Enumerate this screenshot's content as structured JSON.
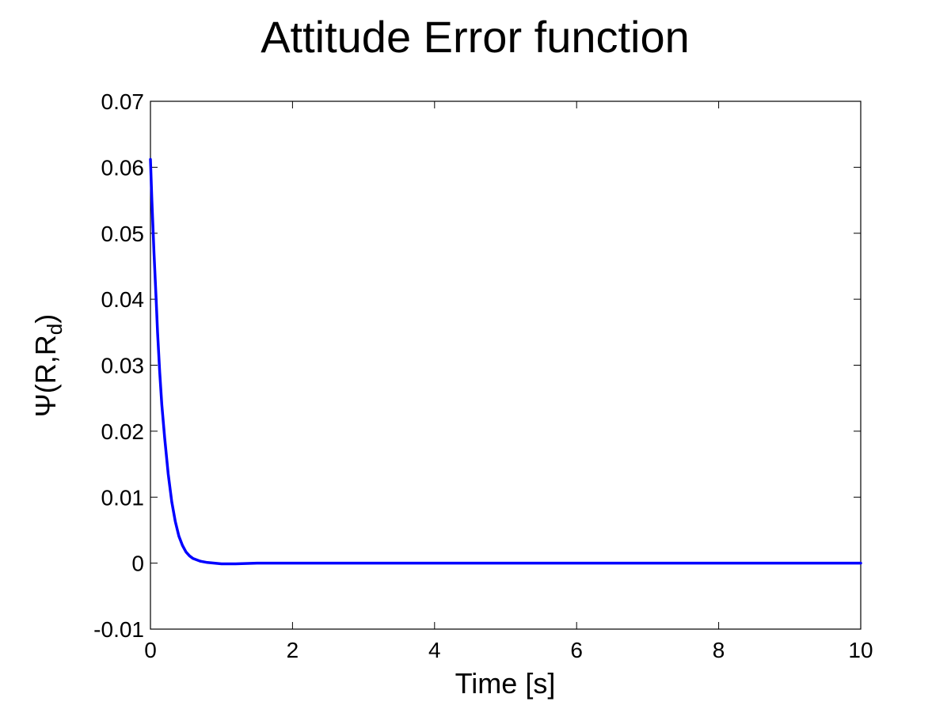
{
  "chart_data": {
    "type": "line",
    "title": "Attitude Error function",
    "xlabel": "Time [s]",
    "ylabel": {
      "prefix": "Ψ(R,R",
      "subscript": "d",
      "suffix": ")"
    },
    "xlim": [
      0,
      10
    ],
    "ylim": [
      -0.01,
      0.07
    ],
    "xticks": [
      0,
      2,
      4,
      6,
      8,
      10
    ],
    "xtick_labels": [
      "0",
      "2",
      "4",
      "6",
      "8",
      "10"
    ],
    "yticks": [
      -0.01,
      0,
      0.01,
      0.02,
      0.03,
      0.04,
      0.05,
      0.06,
      0.07
    ],
    "ytick_labels": [
      "-0.01",
      "0",
      "0.01",
      "0.02",
      "0.03",
      "0.04",
      "0.05",
      "0.06",
      "0.07"
    ],
    "grid": false,
    "series": [
      {
        "name": "Ψ(R,Rd)",
        "color": "#0000ff",
        "x": [
          0,
          0.02,
          0.05,
          0.08,
          0.1,
          0.13,
          0.16,
          0.2,
          0.25,
          0.3,
          0.35,
          0.4,
          0.45,
          0.5,
          0.55,
          0.6,
          0.7,
          0.8,
          0.9,
          1.0,
          1.2,
          1.5,
          2,
          3,
          4,
          5,
          6,
          7,
          8,
          9,
          10
        ],
        "y": [
          0.0612,
          0.055,
          0.047,
          0.04,
          0.035,
          0.029,
          0.024,
          0.019,
          0.0135,
          0.0093,
          0.0063,
          0.0041,
          0.0027,
          0.0017,
          0.0011,
          0.0007,
          0.0003,
          0.0001,
          0.0,
          -0.0001,
          -0.0001,
          0.0,
          0.0,
          0.0,
          0.0,
          0.0,
          0.0,
          0.0,
          0.0,
          0.0,
          0.0
        ]
      }
    ]
  }
}
